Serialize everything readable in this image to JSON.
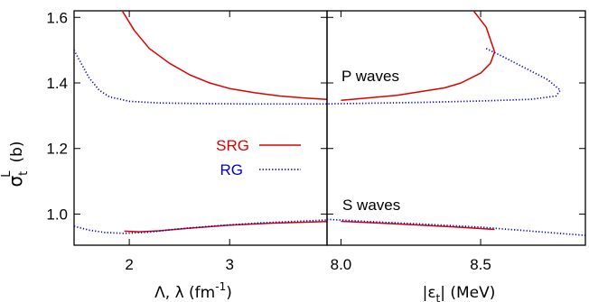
{
  "chart_data": [
    {
      "type": "line",
      "panel": "left",
      "xlim": [
        1.45,
        3.97
      ],
      "ylim": [
        0.905,
        1.62
      ],
      "xticks": [
        {
          "v": 2,
          "label": "2"
        },
        {
          "v": 3,
          "label": "3"
        }
      ],
      "yticks": [
        {
          "v": 1.0,
          "label": "1.0"
        },
        {
          "v": 1.2,
          "label": "1.2"
        },
        {
          "v": 1.4,
          "label": "1.4"
        },
        {
          "v": 1.6,
          "label": "1.6"
        }
      ],
      "xlabel_main": "Λ, λ (fm",
      "xlabel_sup": "-1",
      "xlabel_end": ")",
      "ylabel_main": "σ",
      "ylabel_sub": "t",
      "ylabel_sup": "L",
      "ylabel_end": "(b)",
      "series": [
        {
          "name": "SRG",
          "color": "#dd0000",
          "style": "solid",
          "group": "P",
          "points": [
            [
              1.92,
              1.625
            ],
            [
              2.05,
              1.56
            ],
            [
              2.2,
              1.505
            ],
            [
              2.4,
              1.46
            ],
            [
              2.6,
              1.425
            ],
            [
              2.8,
              1.4
            ],
            [
              3.0,
              1.383
            ],
            [
              3.25,
              1.37
            ],
            [
              3.5,
              1.36
            ],
            [
              3.75,
              1.354
            ],
            [
              3.97,
              1.35
            ]
          ]
        },
        {
          "name": "SRG",
          "color": "#dd0000",
          "style": "solid",
          "group": "S",
          "points": [
            [
              1.95,
              0.948
            ],
            [
              2.1,
              0.946
            ],
            [
              2.3,
              0.949
            ],
            [
              2.6,
              0.957
            ],
            [
              3.0,
              0.966
            ],
            [
              3.4,
              0.972
            ],
            [
              3.97,
              0.977
            ]
          ]
        },
        {
          "name": "RG",
          "color": "#0000cc",
          "style": "dotted",
          "group": "P",
          "points": [
            [
              1.45,
              1.5
            ],
            [
              1.52,
              1.46
            ],
            [
              1.6,
              1.415
            ],
            [
              1.7,
              1.378
            ],
            [
              1.8,
              1.358
            ],
            [
              2.0,
              1.344
            ],
            [
              2.3,
              1.339
            ],
            [
              2.7,
              1.337
            ],
            [
              3.2,
              1.336
            ],
            [
              3.6,
              1.336
            ],
            [
              3.97,
              1.336
            ]
          ]
        },
        {
          "name": "RG",
          "color": "#0000cc",
          "style": "dotted",
          "group": "S",
          "points": [
            [
              1.45,
              0.963
            ],
            [
              1.6,
              0.951
            ],
            [
              1.75,
              0.944
            ],
            [
              1.95,
              0.941
            ],
            [
              2.2,
              0.945
            ],
            [
              2.5,
              0.955
            ],
            [
              2.9,
              0.965
            ],
            [
              3.3,
              0.973
            ],
            [
              3.97,
              0.982
            ]
          ]
        }
      ]
    },
    {
      "type": "line",
      "panel": "right",
      "xlim": [
        7.95,
        8.875
      ],
      "ylim": [
        0.905,
        1.62
      ],
      "xticks": [
        {
          "v": 8.0,
          "label": "8.0"
        },
        {
          "v": 8.5,
          "label": "8.5"
        }
      ],
      "xlabel_main": "|ε",
      "xlabel_sub": "t",
      "xlabel_end": "|  (MeV)",
      "series": [
        {
          "name": "SRG",
          "color": "#dd0000",
          "style": "solid",
          "group": "P",
          "points": [
            [
              8.47,
              1.625
            ],
            [
              8.52,
              1.57
            ],
            [
              8.55,
              1.495
            ],
            [
              8.535,
              1.46
            ],
            [
              8.5,
              1.43
            ],
            [
              8.43,
              1.4
            ],
            [
              8.37,
              1.385
            ],
            [
              8.2,
              1.362
            ],
            [
              8.0,
              1.347
            ]
          ]
        },
        {
          "name": "SRG",
          "color": "#dd0000",
          "style": "solid",
          "group": "S",
          "points": [
            [
              8.0,
              0.978
            ],
            [
              8.2,
              0.97
            ],
            [
              8.4,
              0.961
            ],
            [
              8.55,
              0.953
            ]
          ]
        },
        {
          "name": "RG",
          "color": "#0000cc",
          "style": "dotted",
          "group": "P",
          "points": [
            [
              8.52,
              1.505
            ],
            [
              8.58,
              1.48
            ],
            [
              8.66,
              1.445
            ],
            [
              8.74,
              1.41
            ],
            [
              8.785,
              1.378
            ],
            [
              8.77,
              1.36
            ],
            [
              8.68,
              1.35
            ],
            [
              8.5,
              1.345
            ],
            [
              8.3,
              1.341
            ],
            [
              8.1,
              1.338
            ],
            [
              7.95,
              1.336
            ]
          ]
        },
        {
          "name": "RG",
          "color": "#0000cc",
          "style": "dotted",
          "group": "S",
          "points": [
            [
              7.95,
              0.984
            ],
            [
              8.1,
              0.977
            ],
            [
              8.3,
              0.969
            ],
            [
              8.5,
              0.96
            ],
            [
              8.65,
              0.95
            ],
            [
              8.8,
              0.94
            ],
            [
              8.875,
              0.935
            ]
          ]
        }
      ]
    }
  ],
  "legend": {
    "placement": "center-left",
    "entries": [
      {
        "label": "SRG",
        "color": "#dd0000",
        "style": "solid"
      },
      {
        "label": "RG",
        "color": "#0000cc",
        "style": "dotted"
      }
    ]
  },
  "annotations": {
    "p_waves": "P waves",
    "s_waves": "S waves"
  }
}
